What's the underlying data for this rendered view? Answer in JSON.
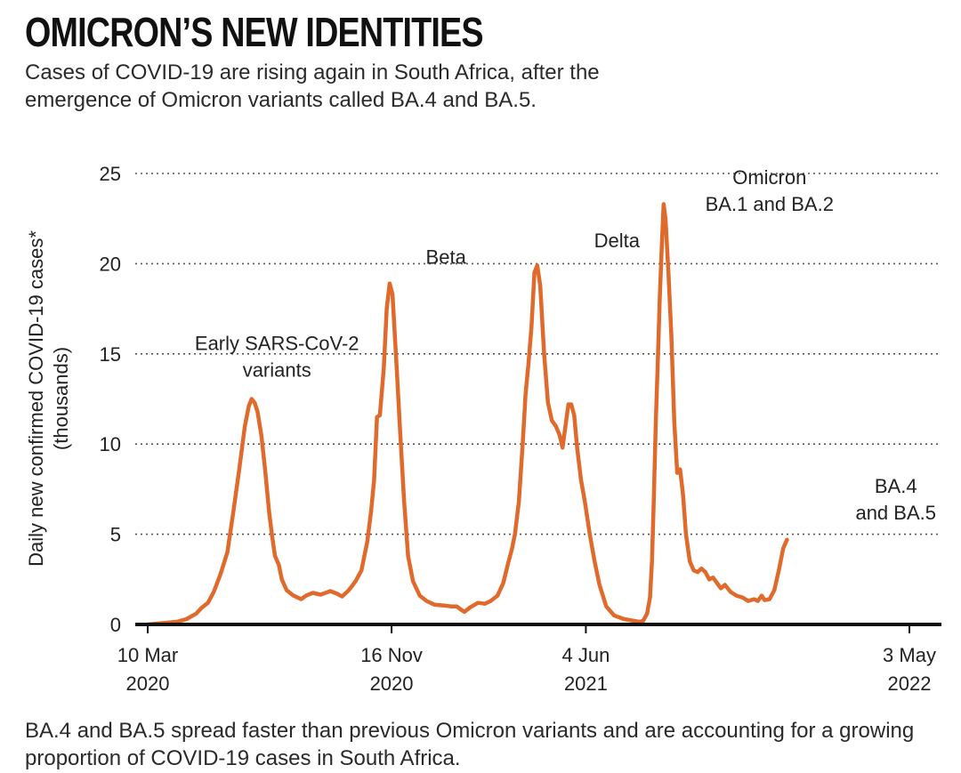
{
  "header": {
    "title": "OMICRON’S NEW IDENTITIES",
    "subtitle": "Cases of COVID-19 are rising again in South Africa, after the emergence of Omicron variants called BA.4 and BA.5."
  },
  "footer": {
    "note": "BA.4 and BA.5 spread faster than previous Omicron variants and are accounting for a growing proportion of COVID-19 cases in South Africa."
  },
  "colors": {
    "line": "#e06a2c",
    "grid": "#555555",
    "axis": "#111111"
  },
  "chart_data": {
    "type": "line",
    "title": "OMICRON’S NEW IDENTITIES",
    "ylabel_lines": [
      "Daily new confirmed COVID-19 cases*",
      "(thousands)"
    ],
    "ylim": [
      0,
      25
    ],
    "xlim": [
      0,
      784
    ],
    "x_unit": "days since 10 Mar 2020",
    "yticks": [
      0,
      5,
      10,
      15,
      20,
      25
    ],
    "grid": true,
    "xticks": [
      {
        "x": 0,
        "line1": "10 Mar",
        "line2": "2020"
      },
      {
        "x": 251,
        "line1": "16 Nov",
        "line2": "2020"
      },
      {
        "x": 451,
        "line1": "4 Jun",
        "line2": "2021"
      },
      {
        "x": 784,
        "line1": "3 May",
        "line2": "2022"
      }
    ],
    "annotations": [
      {
        "lines": [
          "Early SARS-CoV-2",
          "variants"
        ],
        "x": 133,
        "y": 15.2
      },
      {
        "lines": [
          "Beta"
        ],
        "x": 307,
        "y": 20.0
      },
      {
        "lines": [
          "Delta"
        ],
        "x": 483,
        "y": 20.9
      },
      {
        "lines": [
          "Omicron",
          "BA.1 and BA.2"
        ],
        "x": 640,
        "y": 24.4
      },
      {
        "lines": [
          "BA.4",
          "and BA.5"
        ],
        "x": 770,
        "y": 7.3
      }
    ],
    "series": [
      {
        "name": "Daily new confirmed COVID-19 cases (thousands)",
        "points": [
          [
            0,
            0
          ],
          [
            10,
            0.05
          ],
          [
            20,
            0.1
          ],
          [
            30,
            0.15
          ],
          [
            40,
            0.3
          ],
          [
            50,
            0.6
          ],
          [
            55,
            0.9
          ],
          [
            62,
            1.2
          ],
          [
            68,
            1.8
          ],
          [
            75,
            2.8
          ],
          [
            82,
            4.0
          ],
          [
            88,
            6.2
          ],
          [
            94,
            8.5
          ],
          [
            100,
            11.0
          ],
          [
            104,
            12.1
          ],
          [
            107,
            12.5
          ],
          [
            110,
            12.3
          ],
          [
            113,
            11.8
          ],
          [
            117,
            10.5
          ],
          [
            121,
            8.5
          ],
          [
            125,
            6.2
          ],
          [
            128,
            4.9
          ],
          [
            131,
            3.8
          ],
          [
            135,
            3.3
          ],
          [
            138,
            2.5
          ],
          [
            143,
            1.9
          ],
          [
            150,
            1.6
          ],
          [
            158,
            1.4
          ],
          [
            163,
            1.6
          ],
          [
            170,
            1.75
          ],
          [
            178,
            1.65
          ],
          [
            188,
            1.85
          ],
          [
            195,
            1.7
          ],
          [
            200,
            1.55
          ],
          [
            207,
            1.9
          ],
          [
            214,
            2.4
          ],
          [
            220,
            3.0
          ],
          [
            226,
            4.6
          ],
          [
            230,
            6.3
          ],
          [
            233,
            8.0
          ],
          [
            236,
            11.5
          ],
          [
            239,
            11.6
          ],
          [
            243,
            14.2
          ],
          [
            246,
            17.5
          ],
          [
            249,
            18.9
          ],
          [
            252,
            18.3
          ],
          [
            256,
            14.5
          ],
          [
            260,
            10.5
          ],
          [
            264,
            6.8
          ],
          [
            268,
            3.8
          ],
          [
            273,
            2.4
          ],
          [
            280,
            1.6
          ],
          [
            287,
            1.3
          ],
          [
            295,
            1.1
          ],
          [
            305,
            1.05
          ],
          [
            312,
            1.0
          ],
          [
            318,
            1.0
          ],
          [
            323,
            0.8
          ],
          [
            326,
            0.7
          ],
          [
            332,
            0.95
          ],
          [
            340,
            1.2
          ],
          [
            347,
            1.15
          ],
          [
            353,
            1.3
          ],
          [
            360,
            1.6
          ],
          [
            366,
            2.3
          ],
          [
            371,
            3.4
          ],
          [
            375,
            4.2
          ],
          [
            378,
            5.0
          ],
          [
            382,
            6.8
          ],
          [
            386,
            10.0
          ],
          [
            389,
            12.8
          ],
          [
            392,
            14.5
          ],
          [
            395,
            16.5
          ],
          [
            398,
            19.5
          ],
          [
            401,
            19.9
          ],
          [
            404,
            18.8
          ],
          [
            408,
            15.0
          ],
          [
            412,
            12.3
          ],
          [
            416,
            11.3
          ],
          [
            420,
            11.0
          ],
          [
            424,
            10.5
          ],
          [
            427,
            9.8
          ],
          [
            430,
            11.0
          ],
          [
            433,
            12.2
          ],
          [
            436,
            12.2
          ],
          [
            439,
            11.6
          ],
          [
            442,
            9.8
          ],
          [
            446,
            8.0
          ],
          [
            450,
            6.8
          ],
          [
            455,
            5.0
          ],
          [
            460,
            3.5
          ],
          [
            465,
            2.2
          ],
          [
            472,
            1.0
          ],
          [
            480,
            0.5
          ],
          [
            490,
            0.3
          ],
          [
            500,
            0.2
          ],
          [
            506,
            0.15
          ],
          [
            510,
            0.2
          ],
          [
            514,
            0.6
          ],
          [
            517,
            1.5
          ],
          [
            519,
            3.5
          ],
          [
            521,
            7.0
          ],
          [
            523,
            11.2
          ],
          [
            525,
            14.5
          ],
          [
            527,
            18.0
          ],
          [
            529,
            20.8
          ],
          [
            531,
            23.3
          ],
          [
            533,
            22.5
          ],
          [
            536,
            19.5
          ],
          [
            539,
            16.0
          ],
          [
            542,
            11.2
          ],
          [
            545,
            8.4
          ],
          [
            548,
            8.6
          ],
          [
            551,
            7.2
          ],
          [
            554,
            5.0
          ],
          [
            558,
            3.5
          ],
          [
            562,
            3.0
          ],
          [
            566,
            2.9
          ],
          [
            570,
            3.1
          ],
          [
            574,
            2.9
          ],
          [
            578,
            2.5
          ],
          [
            582,
            2.6
          ],
          [
            586,
            2.3
          ],
          [
            590,
            2.0
          ],
          [
            594,
            2.2
          ],
          [
            600,
            1.8
          ],
          [
            606,
            1.6
          ],
          [
            612,
            1.5
          ],
          [
            618,
            1.3
          ],
          [
            624,
            1.4
          ],
          [
            628,
            1.3
          ],
          [
            632,
            1.6
          ],
          [
            635,
            1.35
          ],
          [
            640,
            1.4
          ],
          [
            645,
            1.9
          ],
          [
            650,
            3.1
          ],
          [
            654,
            4.2
          ],
          [
            658,
            4.7
          ]
        ]
      }
    ]
  }
}
